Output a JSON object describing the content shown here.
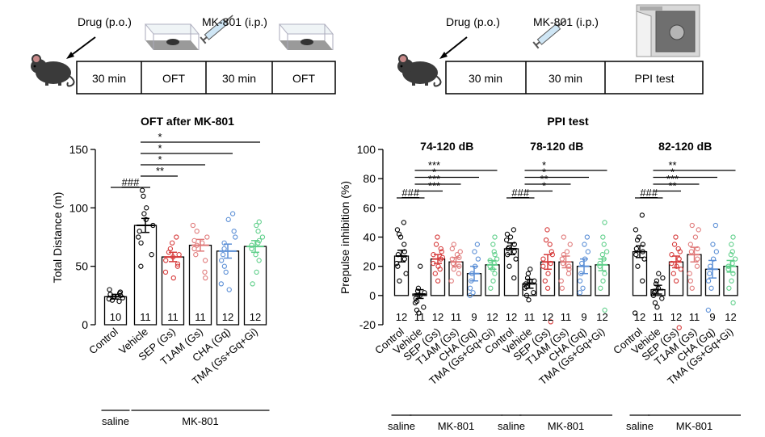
{
  "schematic": {
    "left": {
      "drug_label": "Drug (p.o.)",
      "inject_label": "MK-801 (i.p.)",
      "boxes": [
        "30 min",
        "OFT",
        "30 min",
        "OFT"
      ]
    },
    "right": {
      "drug_label": "Drug (p.o.)",
      "inject_label": "MK-801 (i.p.)",
      "boxes": [
        "30 min",
        "30 min",
        "PPI test"
      ]
    }
  },
  "colors": {
    "control": "#000000",
    "vehicle": "#000000",
    "sep": "#d63a3a",
    "t1am": "#e07a7a",
    "cha": "#5b8fd6",
    "tma": "#5fcf8a"
  },
  "chart_data": [
    {
      "type": "bar",
      "title": "OFT after MK-801",
      "ylabel": "Total Distance (m)",
      "ylim": [
        0,
        150
      ],
      "yticks": [
        "0",
        "50",
        "100",
        "150"
      ],
      "categories": [
        "Control",
        "Vehicle",
        "SEP (Gs)",
        "T1AM (Gs)",
        "CHA (Gq)",
        "TMA (Gs+Gq+Gi)"
      ],
      "values": [
        24,
        85,
        58,
        68,
        63,
        67
      ],
      "errors": [
        2,
        6,
        4,
        5,
        6,
        5
      ],
      "n": [
        "10",
        "11",
        "11",
        "11",
        "12",
        "12"
      ],
      "points": [
        [
          20,
          22,
          24,
          25,
          26,
          28,
          30,
          23,
          21,
          27
        ],
        [
          100,
          110,
          115,
          90,
          80,
          75,
          60,
          50,
          95,
          85,
          70
        ],
        [
          70,
          65,
          60,
          55,
          50,
          45,
          40,
          62,
          58,
          52,
          75
        ],
        [
          80,
          75,
          70,
          65,
          60,
          55,
          45,
          85,
          72,
          68,
          40
        ],
        [
          95,
          90,
          80,
          70,
          60,
          55,
          45,
          35,
          30,
          65,
          75,
          50
        ],
        [
          88,
          85,
          80,
          75,
          70,
          65,
          55,
          45,
          35,
          72,
          60,
          68
        ]
      ],
      "comparisons": [
        {
          "from": 0,
          "to": 1,
          "label": "###"
        },
        {
          "from": 1,
          "to": 2,
          "label": "**"
        },
        {
          "from": 1,
          "to": 3,
          "label": "*"
        },
        {
          "from": 1,
          "to": 4,
          "label": "*"
        },
        {
          "from": 1,
          "to": 5,
          "label": "*"
        }
      ],
      "groups": [
        {
          "label": "saline",
          "from": 0,
          "to": 0
        },
        {
          "label": "MK-801",
          "from": 1,
          "to": 5
        }
      ]
    },
    {
      "type": "bar",
      "title": "PPI test",
      "ylabel": "Prepulse inhibition (%)",
      "ylim": [
        -20,
        100
      ],
      "yticks": [
        "-20",
        "0",
        "20",
        "40",
        "60",
        "80",
        "100"
      ],
      "categories": [
        "Control",
        "Vehicle",
        "SEP (Gs)",
        "T1AM (Gs)",
        "CHA (Gq)",
        "TMA (Gs+Gq+Gi)"
      ],
      "n": [
        "12",
        "11",
        "12",
        "11",
        "9",
        "12"
      ],
      "panels": [
        {
          "subtitle": "74-120 dB",
          "values": [
            27,
            1,
            25,
            23,
            15,
            21
          ],
          "errors": [
            4,
            3,
            3,
            3,
            5,
            3
          ],
          "points": [
            [
              50,
              45,
              40,
              30,
              28,
              25,
              20,
              15,
              10,
              35,
              22,
              42
            ],
            [
              20,
              5,
              3,
              0,
              -2,
              -5,
              -8,
              -10,
              -12,
              2,
              -4
            ],
            [
              40,
              35,
              30,
              28,
              25,
              22,
              20,
              15,
              10,
              32,
              18,
              26
            ],
            [
              35,
              30,
              28,
              25,
              22,
              20,
              15,
              10,
              32,
              18,
              26
            ],
            [
              35,
              30,
              25,
              15,
              10,
              5,
              2,
              0,
              20
            ],
            [
              40,
              35,
              30,
              25,
              22,
              20,
              15,
              10,
              5,
              28,
              18,
              24
            ]
          ],
          "comparisons": [
            {
              "from": 0,
              "to": 1,
              "label": "###"
            },
            {
              "from": 1,
              "to": 2,
              "label": "***"
            },
            {
              "from": 1,
              "to": 3,
              "label": "***"
            },
            {
              "from": 1,
              "to": 4,
              "label": "*"
            },
            {
              "from": 1,
              "to": 5,
              "label": "***"
            }
          ]
        },
        {
          "subtitle": "78-120 dB",
          "values": [
            32,
            8,
            23,
            23,
            20,
            21
          ],
          "errors": [
            4,
            3,
            5,
            4,
            5,
            4
          ],
          "points": [
            [
              45,
              42,
              40,
              35,
              32,
              30,
              28,
              25,
              20,
              12,
              38,
              33
            ],
            [
              18,
              15,
              12,
              10,
              8,
              5,
              2,
              0,
              -3,
              10,
              6
            ],
            [
              45,
              38,
              30,
              25,
              22,
              20,
              15,
              10,
              5,
              -18,
              35,
              28
            ],
            [
              40,
              35,
              30,
              25,
              22,
              20,
              15,
              10,
              5,
              28,
              18
            ],
            [
              40,
              35,
              30,
              22,
              15,
              10,
              5,
              2,
              25
            ],
            [
              50,
              40,
              35,
              30,
              25,
              20,
              15,
              10,
              5,
              -10,
              28,
              22
            ]
          ],
          "comparisons": [
            {
              "from": 0,
              "to": 1,
              "label": "###"
            },
            {
              "from": 1,
              "to": 2,
              "label": "*"
            },
            {
              "from": 1,
              "to": 3,
              "label": "**"
            },
            {
              "from": 1,
              "to": 4,
              "label": "*"
            },
            {
              "from": 1,
              "to": 5,
              "label": "*"
            }
          ]
        },
        {
          "subtitle": "82-120 dB",
          "values": [
            30,
            4,
            23,
            28,
            18,
            20
          ],
          "errors": [
            4,
            3,
            4,
            5,
            6,
            4
          ],
          "points": [
            [
              55,
              45,
              40,
              35,
              32,
              30,
              28,
              25,
              20,
              10,
              -12,
              38
            ],
            [
              15,
              10,
              8,
              5,
              2,
              0,
              -2,
              -5,
              -8,
              12,
              3
            ],
            [
              40,
              35,
              30,
              28,
              25,
              22,
              20,
              15,
              10,
              -22,
              32,
              18
            ],
            [
              48,
              45,
              40,
              35,
              30,
              25,
              20,
              15,
              10,
              5,
              32
            ],
            [
              48,
              35,
              30,
              20,
              15,
              10,
              5,
              -10,
              25
            ],
            [
              40,
              35,
              30,
              25,
              22,
              20,
              15,
              10,
              5,
              -5,
              28,
              18
            ]
          ],
          "comparisons": [
            {
              "from": 0,
              "to": 1,
              "label": "###"
            },
            {
              "from": 1,
              "to": 2,
              "label": "**"
            },
            {
              "from": 1,
              "to": 3,
              "label": "***"
            },
            {
              "from": 1,
              "to": 4,
              "label": "*"
            },
            {
              "from": 1,
              "to": 5,
              "label": "**"
            }
          ]
        }
      ],
      "groups": [
        {
          "label": "saline",
          "from": 0,
          "to": 0
        },
        {
          "label": "MK-801",
          "from": 1,
          "to": 5
        }
      ]
    }
  ]
}
